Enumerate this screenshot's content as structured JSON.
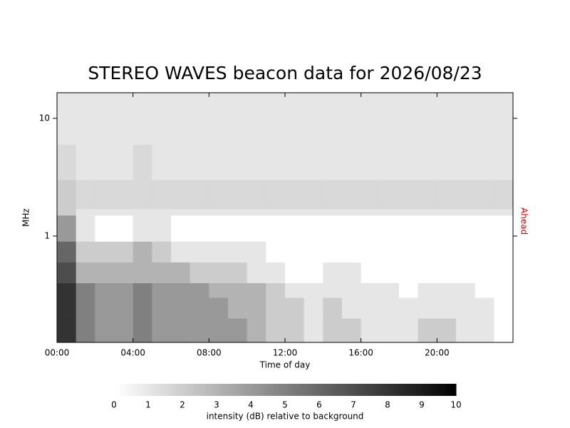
{
  "chart_data": {
    "type": "heatmap",
    "title": "STEREO WAVES beacon data for 2026/08/23",
    "xlabel": "Time of day",
    "ylabel": "MHz",
    "right_label": "Ahead",
    "right_label_color": "#dd0000",
    "xlim": [
      0,
      24
    ],
    "xticks": [
      {
        "value": 0,
        "label": "00:00"
      },
      {
        "value": 4,
        "label": "04:00"
      },
      {
        "value": 8,
        "label": "08:00"
      },
      {
        "value": 12,
        "label": "12:00"
      },
      {
        "value": 16,
        "label": "16:00"
      },
      {
        "value": 20,
        "label": "20:00"
      }
    ],
    "ylim": [
      0.125,
      16.5
    ],
    "log_y": true,
    "yticks": [
      1,
      10
    ],
    "x_bins": [
      0,
      1,
      2,
      3,
      4,
      5,
      6,
      7,
      8,
      9,
      10,
      11,
      12,
      13,
      14,
      15,
      16,
      17,
      18,
      19,
      20,
      21,
      22,
      23,
      24
    ],
    "y_bins": [
      0.125,
      0.2,
      0.3,
      0.4,
      0.6,
      0.9,
      1.5,
      1.7,
      3,
      6,
      16.5
    ],
    "values": [
      [
        8,
        5,
        4,
        4,
        5,
        4,
        4,
        4,
        4,
        4,
        3,
        2,
        2,
        1,
        2,
        2,
        1,
        1,
        1,
        2,
        2,
        1,
        1,
        0
      ],
      [
        8,
        5,
        4,
        4,
        5,
        4,
        4,
        4,
        4,
        3,
        3,
        2,
        2,
        1,
        2,
        1,
        1,
        1,
        1,
        1,
        1,
        1,
        1,
        0
      ],
      [
        8,
        5,
        4,
        4,
        5,
        4,
        4,
        4,
        3,
        3,
        3,
        2,
        1,
        1,
        1,
        1,
        1,
        1,
        0,
        1,
        1,
        1,
        0,
        0
      ],
      [
        7,
        3,
        3,
        3,
        3,
        3,
        3,
        2,
        2,
        2,
        1,
        1,
        0,
        0,
        1,
        1,
        0,
        0,
        0,
        0,
        0,
        0,
        0,
        0
      ],
      [
        6,
        2,
        2,
        2,
        3,
        2,
        1,
        1,
        1,
        1,
        1,
        0,
        0,
        0,
        0,
        0,
        0,
        0,
        0,
        0,
        0,
        0,
        0,
        0
      ],
      [
        4,
        1,
        0,
        0,
        1,
        1,
        0,
        0,
        0,
        0,
        0,
        0,
        0,
        0,
        0,
        0,
        0,
        0,
        0,
        0,
        0,
        0,
        0,
        0
      ],
      [
        2,
        1,
        1,
        1,
        1,
        1,
        1,
        1,
        1,
        1,
        1,
        1,
        1,
        1,
        1,
        1,
        1,
        1,
        1,
        1,
        1,
        1,
        1,
        1
      ],
      [
        2,
        1.5,
        1.5,
        1.5,
        1.5,
        1.5,
        1.5,
        1.5,
        1.5,
        1.5,
        1.5,
        1.5,
        1.5,
        1.5,
        1.5,
        1.5,
        1.5,
        1.5,
        1.5,
        1.5,
        1.5,
        1.5,
        1.5,
        1.5
      ],
      [
        1.5,
        1,
        1,
        1,
        1.5,
        1,
        1,
        1,
        1,
        1,
        1,
        1,
        1,
        1,
        1,
        1,
        1,
        1,
        1,
        1,
        1,
        1,
        1,
        1
      ],
      [
        1,
        1,
        1,
        1,
        1,
        1,
        1,
        1,
        1,
        1,
        1,
        1,
        1,
        1,
        1,
        1,
        1,
        1,
        1,
        1,
        1,
        1,
        1,
        1
      ]
    ],
    "colorbar_label": "intensity (dB) relative to background",
    "colorbar_lim": [
      0,
      10
    ],
    "colorbar_ticks": [
      0,
      1,
      2,
      3,
      4,
      5,
      6,
      7,
      8,
      9,
      10
    ]
  }
}
